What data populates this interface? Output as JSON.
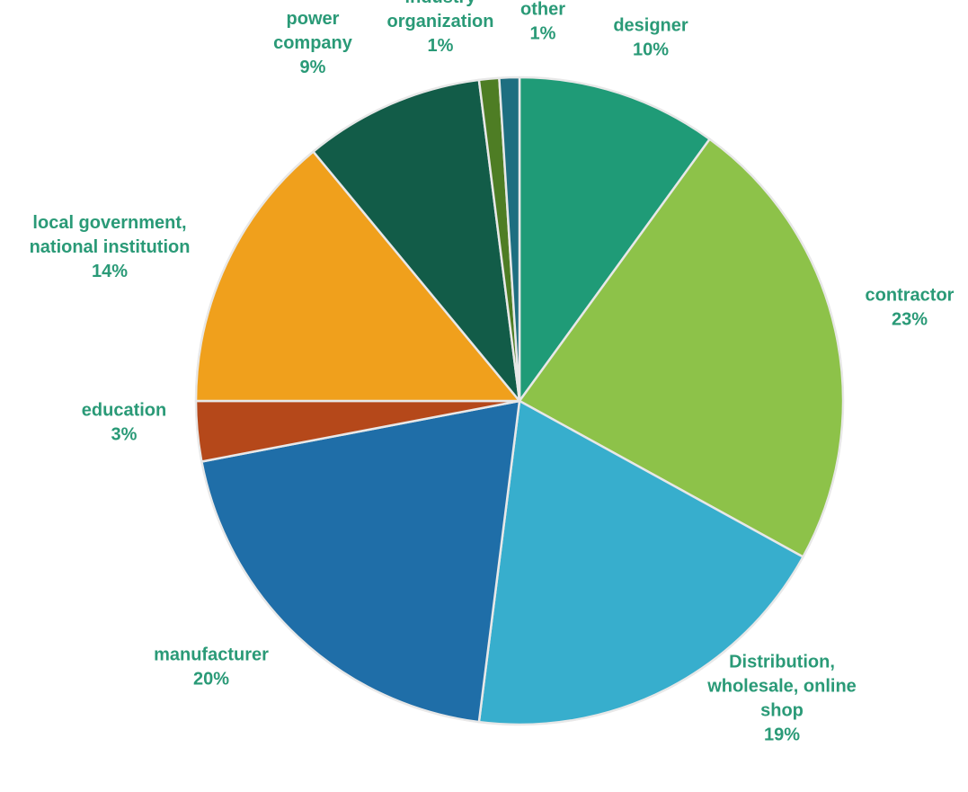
{
  "chart_data": {
    "type": "pie",
    "title": "",
    "start_angle_deg": 0,
    "direction": "clockwise",
    "label_color": "#2a9a77",
    "slices": [
      {
        "category": "designer",
        "value": 10,
        "label_lines": [
          "designer"
        ],
        "pct_label": "10%",
        "color": "#1f9b77"
      },
      {
        "category": "contractor",
        "value": 23,
        "label_lines": [
          "contractor"
        ],
        "pct_label": "23%",
        "color": "#8dc249"
      },
      {
        "category": "Distribution, wholesale, online shop",
        "value": 19,
        "label_lines": [
          "Distribution,",
          "wholesale, online",
          "shop"
        ],
        "pct_label": "19%",
        "color": "#37aecd"
      },
      {
        "category": "manufacturer",
        "value": 20,
        "label_lines": [
          "manufacturer"
        ],
        "pct_label": "20%",
        "color": "#1f6ea8"
      },
      {
        "category": "education",
        "value": 3,
        "label_lines": [
          "education"
        ],
        "pct_label": "3%",
        "color": "#b5481a"
      },
      {
        "category": "local government, national institution",
        "value": 14,
        "label_lines": [
          "local government,",
          "national institution"
        ],
        "pct_label": "14%",
        "color": "#f0a01c"
      },
      {
        "category": "power company",
        "value": 9,
        "label_lines": [
          "power",
          "company"
        ],
        "pct_label": "9%",
        "color": "#125c48"
      },
      {
        "category": "industry organization",
        "value": 1,
        "label_lines": [
          "industry",
          "organization"
        ],
        "pct_label": "1%",
        "color": "#4e7d24"
      },
      {
        "category": "other",
        "value": 1,
        "label_lines": [
          "other"
        ],
        "pct_label": "1%",
        "color": "#1e6e80"
      }
    ]
  }
}
